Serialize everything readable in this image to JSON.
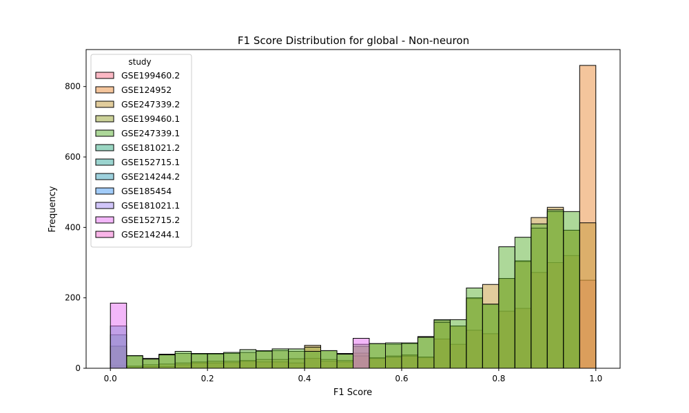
{
  "chart_data": {
    "type": "histogram",
    "title": "F1 Score Distribution for global - Non-neuron",
    "xlabel": "F1 Score",
    "ylabel": "Frequency",
    "xlim": [
      -0.05,
      1.05
    ],
    "ylim": [
      0,
      905
    ],
    "x_ticks": [
      0.0,
      0.2,
      0.4,
      0.6,
      0.8,
      1.0
    ],
    "x_tick_labels": [
      "0.0",
      "0.2",
      "0.4",
      "0.6",
      "0.8",
      "1.0"
    ],
    "y_ticks": [
      0,
      200,
      400,
      600,
      800
    ],
    "y_tick_labels": [
      "0",
      "200",
      "400",
      "600",
      "800"
    ],
    "bins": [
      0.0,
      0.0333,
      0.0667,
      0.1,
      0.1333,
      0.1667,
      0.2,
      0.2333,
      0.2667,
      0.3,
      0.3333,
      0.3667,
      0.4,
      0.4333,
      0.4667,
      0.5,
      0.5333,
      0.5667,
      0.6,
      0.6333,
      0.6667,
      0.7,
      0.7333,
      0.7667,
      0.8,
      0.8333,
      0.8667,
      0.9,
      0.9333,
      0.9667,
      1.0
    ],
    "grid": false,
    "legend": {
      "title": "study",
      "placement": "upper-left"
    },
    "series": [
      {
        "name": "GSE199460.2",
        "color": "#f77189",
        "values": [
          0,
          0,
          0,
          0,
          0,
          0,
          0,
          0,
          0,
          0,
          0,
          0,
          0,
          0,
          0,
          0,
          0,
          0,
          0,
          0,
          0,
          0,
          0,
          0,
          0,
          0,
          0,
          0,
          0,
          250
        ]
      },
      {
        "name": "GSE124952",
        "color": "#e98b3a",
        "values": [
          3,
          2,
          5,
          5,
          10,
          15,
          15,
          16,
          20,
          18,
          18,
          15,
          28,
          20,
          18,
          43,
          30,
          35,
          38,
          30,
          83,
          68,
          108,
          98,
          162,
          170,
          272,
          300,
          320,
          860
        ]
      },
      {
        "name": "GSE247339.2",
        "color": "#c39a3a",
        "values": [
          8,
          6,
          10,
          12,
          15,
          18,
          20,
          20,
          22,
          25,
          25,
          27,
          65,
          25,
          22,
          35,
          28,
          32,
          35,
          32,
          135,
          120,
          198,
          238,
          255,
          303,
          428,
          457,
          392,
          413
        ]
      },
      {
        "name": "GSE199460.1",
        "color": "#97a431",
        "values": [
          62,
          35,
          28,
          40,
          42,
          40,
          40,
          42,
          45,
          48,
          50,
          48,
          60,
          50,
          42,
          62,
          70,
          68,
          70,
          90,
          130,
          120,
          200,
          182,
          255,
          305,
          398,
          445,
          392,
          0
        ]
      },
      {
        "name": "GSE247339.1",
        "color": "#5bb234",
        "values": [
          63,
          36,
          26,
          38,
          48,
          42,
          42,
          45,
          53,
          50,
          55,
          55,
          48,
          50,
          40,
          68,
          70,
          72,
          72,
          88,
          138,
          138,
          228,
          182,
          345,
          372,
          410,
          450,
          445,
          0
        ]
      },
      {
        "name": "GSE181021.2",
        "color": "#36ad86",
        "values": [
          95,
          0,
          0,
          0,
          0,
          0,
          0,
          0,
          0,
          0,
          0,
          0,
          0,
          0,
          0,
          0,
          0,
          0,
          0,
          0,
          0,
          0,
          0,
          0,
          0,
          0,
          0,
          0,
          0,
          0
        ]
      },
      {
        "name": "GSE152715.1",
        "color": "#38aa9f",
        "values": [
          0,
          0,
          0,
          0,
          0,
          0,
          0,
          0,
          0,
          0,
          0,
          0,
          0,
          0,
          0,
          0,
          0,
          0,
          0,
          0,
          0,
          0,
          0,
          0,
          0,
          0,
          0,
          0,
          0,
          0
        ]
      },
      {
        "name": "GSE214244.2",
        "color": "#3ba3bc",
        "values": [
          120,
          0,
          0,
          0,
          0,
          0,
          0,
          0,
          0,
          0,
          0,
          0,
          0,
          0,
          0,
          0,
          0,
          0,
          0,
          0,
          0,
          0,
          0,
          0,
          0,
          0,
          0,
          0,
          0,
          0
        ]
      },
      {
        "name": "GSE185454",
        "color": "#4599f4",
        "values": [
          0,
          0,
          0,
          0,
          0,
          0,
          0,
          0,
          0,
          0,
          0,
          0,
          0,
          0,
          0,
          0,
          0,
          0,
          0,
          0,
          0,
          0,
          0,
          0,
          0,
          0,
          0,
          0,
          0,
          0
        ]
      },
      {
        "name": "GSE181021.1",
        "color": "#a48cf4",
        "values": [
          0,
          0,
          0,
          0,
          0,
          0,
          0,
          0,
          0,
          0,
          0,
          0,
          0,
          0,
          0,
          0,
          0,
          0,
          0,
          0,
          0,
          0,
          0,
          0,
          0,
          0,
          0,
          0,
          0,
          0
        ]
      },
      {
        "name": "GSE152715.2",
        "color": "#e76ff4",
        "values": [
          185,
          0,
          0,
          0,
          0,
          0,
          0,
          0,
          0,
          0,
          0,
          0,
          0,
          0,
          0,
          85,
          0,
          0,
          0,
          0,
          0,
          0,
          0,
          0,
          0,
          0,
          0,
          0,
          0,
          0
        ]
      },
      {
        "name": "GSE214244.1",
        "color": "#f46bd1",
        "values": [
          0,
          0,
          0,
          0,
          0,
          0,
          0,
          0,
          0,
          0,
          0,
          0,
          0,
          0,
          0,
          0,
          0,
          0,
          0,
          0,
          0,
          0,
          0,
          0,
          0,
          0,
          0,
          0,
          0,
          0
        ]
      }
    ]
  }
}
